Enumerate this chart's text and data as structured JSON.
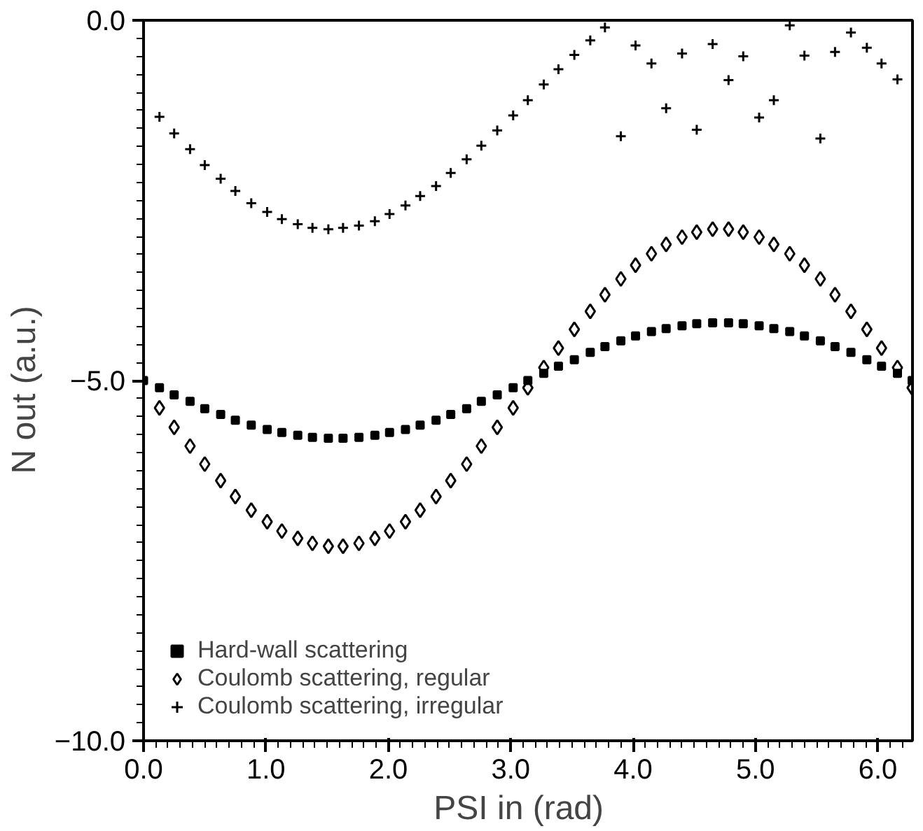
{
  "chart_data": {
    "type": "scatter",
    "xlabel": "PSI in   (rad)",
    "ylabel": "N out   (a.u.)",
    "xlim": [
      0,
      6.283
    ],
    "ylim": [
      -10,
      0
    ],
    "xticks": [
      {
        "value": 0,
        "label": "0.0"
      },
      {
        "value": 1,
        "label": "1.0"
      },
      {
        "value": 2,
        "label": "2.0"
      },
      {
        "value": 3,
        "label": "3.0"
      },
      {
        "value": 4,
        "label": "4.0"
      },
      {
        "value": 5,
        "label": "5.0"
      },
      {
        "value": 6,
        "label": "6.0"
      }
    ],
    "yticks": [
      {
        "value": -10,
        "label": "−10.0"
      },
      {
        "value": -5,
        "label": "−5.0"
      },
      {
        "value": 0,
        "label": "0.0"
      }
    ],
    "grid": false,
    "legend": "bottom left",
    "series": [
      {
        "name": "Hard-wall scattering",
        "color": "#000000",
        "marker": "square",
        "x": [
          0,
          0.13,
          0.25,
          0.38,
          0.5,
          0.63,
          0.75,
          0.88,
          1.01,
          1.13,
          1.26,
          1.38,
          1.51,
          1.63,
          1.76,
          1.89,
          2.01,
          2.14,
          2.26,
          2.39,
          2.51,
          2.64,
          2.76,
          2.89,
          3.02,
          3.14,
          3.27,
          3.39,
          3.52,
          3.65,
          3.77,
          3.9,
          4.02,
          4.15,
          4.27,
          4.4,
          4.52,
          4.65,
          4.78,
          4.9,
          5.03,
          5.15,
          5.28,
          5.4,
          5.53,
          5.65,
          5.78,
          5.91,
          6.03,
          6.16,
          6.28
        ],
        "values": [
          -5.0,
          -5.1,
          -5.2,
          -5.29,
          -5.39,
          -5.47,
          -5.55,
          -5.62,
          -5.68,
          -5.72,
          -5.76,
          -5.79,
          -5.8,
          -5.8,
          -5.79,
          -5.76,
          -5.72,
          -5.68,
          -5.62,
          -5.55,
          -5.47,
          -5.39,
          -5.29,
          -5.2,
          -5.1,
          -5.0,
          -4.9,
          -4.8,
          -4.71,
          -4.61,
          -4.53,
          -4.45,
          -4.38,
          -4.32,
          -4.28,
          -4.24,
          -4.21,
          -4.2,
          -4.2,
          -4.21,
          -4.24,
          -4.28,
          -4.32,
          -4.38,
          -4.45,
          -4.53,
          -4.61,
          -4.71,
          -4.8,
          -4.9,
          -5.0
        ]
      },
      {
        "name": "Coulomb scattering, regular",
        "color": "#000000",
        "marker": "diamond",
        "x": [
          0.13,
          0.25,
          0.38,
          0.5,
          0.63,
          0.75,
          0.88,
          1.01,
          1.13,
          1.26,
          1.38,
          1.51,
          1.63,
          1.76,
          1.89,
          2.01,
          2.14,
          2.26,
          2.39,
          2.51,
          2.64,
          2.76,
          2.89,
          3.02,
          3.14,
          3.27,
          3.39,
          3.52,
          3.65,
          3.77,
          3.9,
          4.02,
          4.15,
          4.27,
          4.4,
          4.52,
          4.65,
          4.78,
          4.9,
          5.03,
          5.15,
          5.28,
          5.4,
          5.53,
          5.65,
          5.78,
          5.91,
          6.03,
          6.16,
          6.28
        ],
        "values": [
          -5.38,
          -5.65,
          -5.91,
          -6.16,
          -6.39,
          -6.61,
          -6.8,
          -6.96,
          -7.09,
          -7.19,
          -7.26,
          -7.3,
          -7.3,
          -7.26,
          -7.19,
          -7.09,
          -6.96,
          -6.8,
          -6.61,
          -6.39,
          -6.16,
          -5.91,
          -5.65,
          -5.38,
          -5.1,
          -4.82,
          -4.55,
          -4.29,
          -4.04,
          -3.81,
          -3.59,
          -3.4,
          -3.24,
          -3.11,
          -3.01,
          -2.94,
          -2.9,
          -2.9,
          -2.94,
          -3.01,
          -3.11,
          -3.24,
          -3.4,
          -3.59,
          -3.81,
          -4.04,
          -4.29,
          -4.55,
          -4.82,
          -5.1
        ]
      },
      {
        "name": "Coulomb scattering, irregular",
        "color": "#000000",
        "marker": "cross",
        "x": [
          0.13,
          0.25,
          0.38,
          0.5,
          0.63,
          0.75,
          0.88,
          1.01,
          1.13,
          1.26,
          1.38,
          1.51,
          1.63,
          1.76,
          1.89,
          2.01,
          2.14,
          2.26,
          2.39,
          2.51,
          2.64,
          2.76,
          2.89,
          3.02,
          3.14,
          3.27,
          3.39,
          3.52,
          3.65,
          3.77,
          3.9,
          4.02,
          4.15,
          4.27,
          4.4,
          4.52,
          4.65,
          4.78,
          4.9,
          5.03,
          5.15,
          5.28,
          5.4,
          5.53,
          5.65,
          5.78,
          5.91,
          6.03,
          6.16
        ],
        "values": [
          -1.34,
          -1.57,
          -1.79,
          -2.01,
          -2.2,
          -2.37,
          -2.54,
          -2.66,
          -2.76,
          -2.83,
          -2.88,
          -2.9,
          -2.88,
          -2.85,
          -2.79,
          -2.69,
          -2.57,
          -2.44,
          -2.3,
          -2.12,
          -1.93,
          -1.74,
          -1.53,
          -1.32,
          -1.11,
          -0.89,
          -0.68,
          -0.48,
          -0.28,
          -0.1,
          -1.61,
          -0.35,
          -0.6,
          -1.22,
          -0.46,
          -1.52,
          -0.33,
          -0.83,
          -0.5,
          -1.35,
          -1.11,
          -0.07,
          -0.49,
          -1.64,
          -0.44,
          -0.17,
          -0.38,
          -0.6,
          -0.82
        ]
      }
    ]
  }
}
